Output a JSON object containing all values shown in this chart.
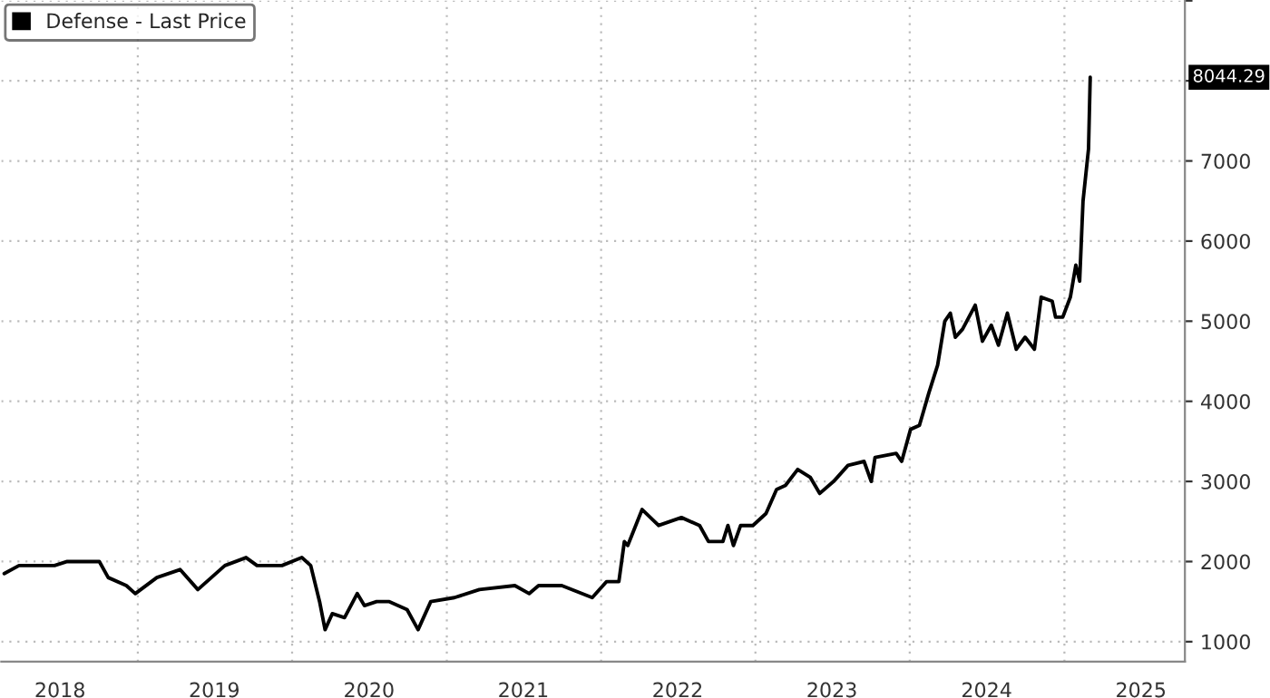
{
  "chart_data": {
    "type": "line",
    "x": [
      "2018-02-19",
      "2018-03-26",
      "2018-05-07",
      "2018-06-18",
      "2018-07-18",
      "2018-09-24",
      "2018-10-02",
      "2018-10-23",
      "2018-12-05",
      "2018-12-26",
      "2019-02-15",
      "2019-04-11",
      "2019-05-23",
      "2019-07-26",
      "2019-09-14",
      "2019-10-10",
      "2019-12-08",
      "2020-01-24",
      "2020-02-14",
      "2020-03-06",
      "2020-03-19",
      "2020-04-05",
      "2020-05-04",
      "2020-06-03",
      "2020-06-20",
      "2020-07-19",
      "2020-08-18",
      "2020-09-29",
      "2020-10-25",
      "2020-11-24",
      "2021-01-19",
      "2021-03-19",
      "2021-06-11",
      "2021-07-15",
      "2021-08-06",
      "2021-09-30",
      "2021-12-11",
      "2022-01-14",
      "2022-02-12",
      "2022-02-25",
      "2022-03-05",
      "2022-04-08",
      "2022-05-17",
      "2022-07-10",
      "2022-08-22",
      "2022-09-12",
      "2022-10-16",
      "2022-10-28",
      "2022-11-10",
      "2022-11-27",
      "2022-12-26",
      "2023-01-26",
      "2023-02-20",
      "2023-03-13",
      "2023-04-11",
      "2023-05-11",
      "2023-06-02",
      "2023-07-05",
      "2023-08-08",
      "2023-09-15",
      "2023-10-02",
      "2023-10-11",
      "2023-11-30",
      "2023-12-13",
      "2024-01-03",
      "2024-01-24",
      "2024-02-15",
      "2024-03-07",
      "2024-03-24",
      "2024-04-06",
      "2024-04-18",
      "2024-05-05",
      "2024-06-04",
      "2024-06-21",
      "2024-07-12",
      "2024-07-29",
      "2024-08-19",
      "2024-09-09",
      "2024-09-30",
      "2024-10-22",
      "2024-11-07",
      "2024-12-03",
      "2024-12-11",
      "2024-12-28",
      "2025-01-15",
      "2025-01-28",
      "2025-02-06",
      "2025-02-14",
      "2025-02-27",
      "2025-03-03"
    ],
    "series": [
      {
        "name": "Defense - Last Price",
        "color": "#000000",
        "values": [
          1850,
          1950,
          1950,
          1950,
          2000,
          2000,
          2000,
          1800,
          1700,
          1600,
          1800,
          1900,
          1650,
          1950,
          2050,
          1950,
          1950,
          2050,
          1950,
          1500,
          1150,
          1350,
          1300,
          1600,
          1450,
          1500,
          1500,
          1400,
          1150,
          1500,
          1550,
          1650,
          1700,
          1600,
          1700,
          1700,
          1550,
          1750,
          1750,
          2250,
          2200,
          2650,
          2450,
          2550,
          2450,
          2250,
          2250,
          2450,
          2200,
          2450,
          2450,
          2600,
          2900,
          2950,
          3150,
          3050,
          2850,
          3000,
          3200,
          3250,
          3000,
          3300,
          3350,
          3250,
          3650,
          3700,
          4100,
          4450,
          5000,
          5100,
          4800,
          4900,
          5200,
          4750,
          4950,
          4700,
          5100,
          4650,
          4800,
          4650,
          5300,
          5250,
          5050,
          5050,
          5300,
          5700,
          5500,
          6500,
          7150,
          8044.29
        ]
      }
    ],
    "xlim": [
      "2018-02-12",
      "2025-10-13"
    ],
    "xticks": [
      {
        "value": "2018-07-01",
        "label": "2018"
      },
      {
        "value": "2019-01-01",
        "label": null
      },
      {
        "value": "2019-07-01",
        "label": "2019"
      },
      {
        "value": "2020-01-01",
        "label": null
      },
      {
        "value": "2020-07-01",
        "label": "2020"
      },
      {
        "value": "2021-01-01",
        "label": null
      },
      {
        "value": "2021-07-01",
        "label": "2021"
      },
      {
        "value": "2022-01-01",
        "label": null
      },
      {
        "value": "2022-07-01",
        "label": "2022"
      },
      {
        "value": "2023-01-01",
        "label": null
      },
      {
        "value": "2023-07-01",
        "label": "2023"
      },
      {
        "value": "2024-01-01",
        "label": null
      },
      {
        "value": "2024-07-01",
        "label": "2024"
      },
      {
        "value": "2025-01-01",
        "label": null
      },
      {
        "value": "2025-07-01",
        "label": "2025"
      }
    ],
    "ylim": [
      750,
      9000
    ],
    "yticks": [
      1000,
      2000,
      3000,
      4000,
      5000,
      6000,
      7000,
      {
        "value": 8000,
        "label": null
      },
      {
        "value": 9000,
        "label": null
      }
    ],
    "annotations": [
      "8044.29"
    ],
    "grid": true,
    "legend": "top left",
    "marker": "none",
    "line_style": "solid"
  }
}
